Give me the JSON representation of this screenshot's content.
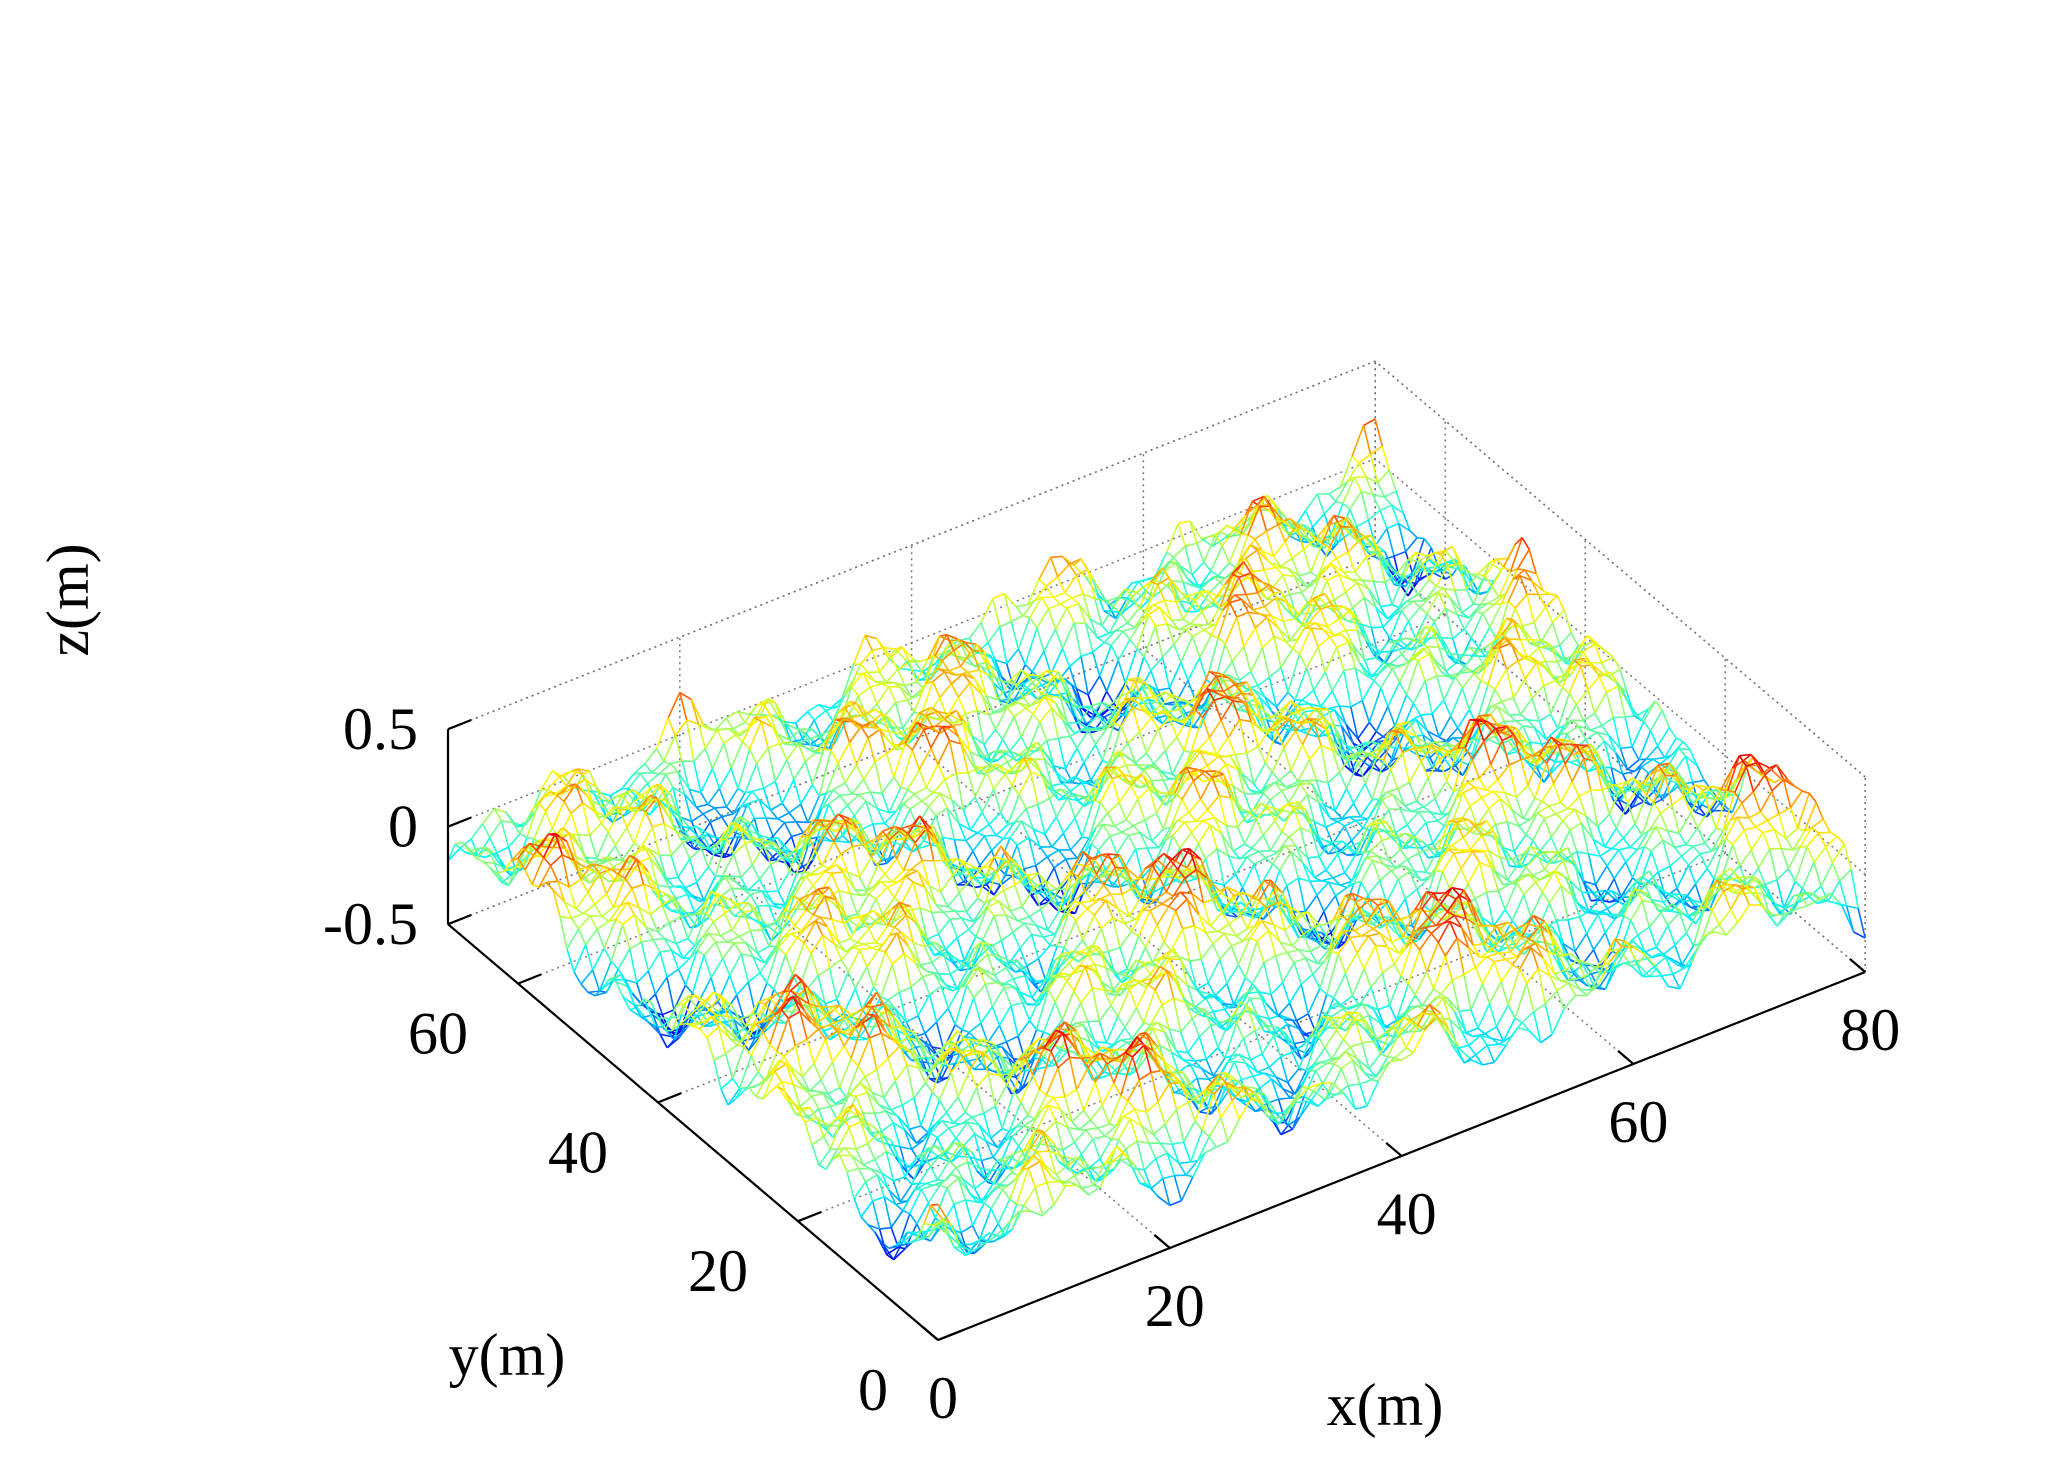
{
  "chart_data": {
    "type": "surface",
    "style": "wireframe mesh",
    "colormap": "jet",
    "grid": true,
    "xlabel": "x(m)",
    "ylabel": "y(m)",
    "zlabel": "z(m)",
    "xlim": [
      0,
      80
    ],
    "ylim": [
      0,
      70
    ],
    "zlim": [
      -0.5,
      0.5
    ],
    "x_ticks": [
      "0",
      "20",
      "40",
      "60",
      "80"
    ],
    "y_ticks": [
      "0",
      "20",
      "40",
      "60"
    ],
    "z_ticks": [
      "-0.5",
      "0",
      "0.5"
    ],
    "surface_z_range": [
      -0.45,
      0.35
    ],
    "grid_resolution_m": 1
  }
}
